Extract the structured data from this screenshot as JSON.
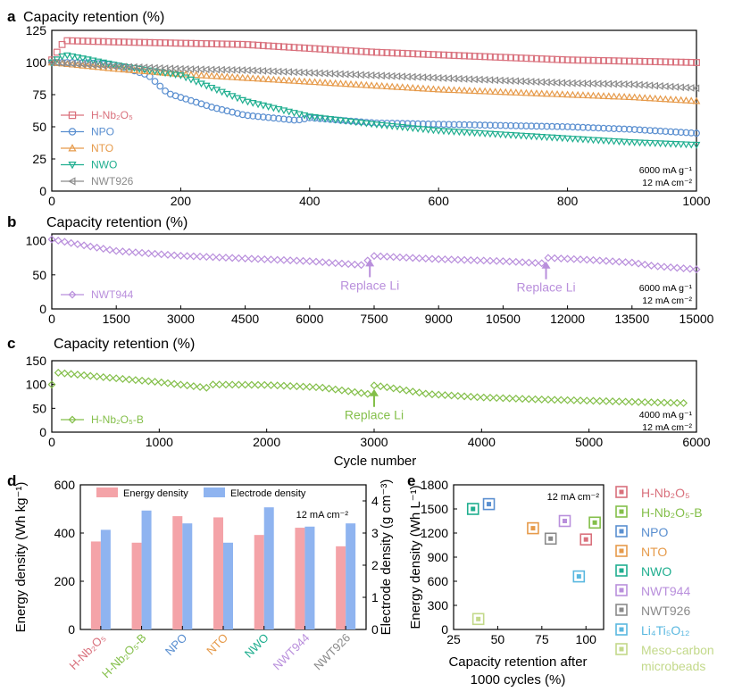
{
  "colors": {
    "H-Nb2O5": "#d9707c",
    "NPO": "#5a8fd0",
    "NTO": "#e69a4a",
    "NWO": "#1fae8f",
    "NWT926": "#8a8a8a",
    "NWT944": "#b98fdc",
    "H-Nb2O5-B": "#84bf4a",
    "Li4Ti5O12": "#5ab8e0",
    "Meso": "#c3d98a",
    "energy_bar": "#f4a3a8",
    "electrode_bar": "#8fb4f0"
  },
  "chart_data": [
    {
      "id": "a",
      "panel_label": "a",
      "type": "scatter",
      "title": "Capacity retention (%)",
      "xlim": [
        0,
        1000
      ],
      "ylim": [
        0,
        125
      ],
      "xticks": [
        "0",
        "200",
        "400",
        "600",
        "800",
        "1000"
      ],
      "yticks": [
        "0",
        "25",
        "50",
        "75",
        "100",
        "125"
      ],
      "annotation": [
        "6000 mA g⁻¹",
        "12 mA cm⁻²"
      ],
      "legend": [
        "H-Nb₂O₅",
        "NPO",
        "NTO",
        "NWO",
        "NWT926"
      ],
      "series": [
        {
          "name": "H-Nb2O5",
          "marker": "square",
          "x": [
            0,
            20,
            100,
            200,
            300,
            400,
            500,
            600,
            700,
            800,
            900,
            1000
          ],
          "y": [
            102,
            117,
            116,
            115,
            114,
            111,
            108,
            106,
            104,
            102,
            101,
            100
          ]
        },
        {
          "name": "NPO",
          "marker": "circle",
          "x": [
            0,
            50,
            100,
            150,
            180,
            250,
            300,
            380,
            400,
            500,
            600,
            700,
            800,
            900,
            1000
          ],
          "y": [
            100,
            100,
            98,
            90,
            76,
            65,
            59,
            55,
            57,
            53,
            52,
            51,
            50,
            48,
            45
          ]
        },
        {
          "name": "NTO",
          "marker": "triangle-up",
          "x": [
            0,
            100,
            200,
            300,
            400,
            500,
            600,
            700,
            800,
            900,
            1000
          ],
          "y": [
            100,
            95,
            91,
            88,
            85,
            82,
            79,
            77,
            75,
            73,
            70
          ]
        },
        {
          "name": "NWO",
          "marker": "triangle-down",
          "x": [
            0,
            20,
            100,
            200,
            300,
            400,
            500,
            600,
            700,
            800,
            900,
            1000
          ],
          "y": [
            100,
            106,
            98,
            90,
            70,
            58,
            52,
            47,
            44,
            41,
            38,
            36
          ]
        },
        {
          "name": "NWT926",
          "marker": "triangle-left",
          "x": [
            0,
            100,
            200,
            300,
            400,
            500,
            600,
            700,
            800,
            900,
            1000
          ],
          "y": [
            100,
            97,
            95,
            94,
            92,
            90,
            88,
            86,
            84,
            83,
            80
          ]
        }
      ]
    },
    {
      "id": "b",
      "panel_label": "b",
      "type": "scatter",
      "title": "Capacity retention  (%)",
      "xlim": [
        0,
        15000
      ],
      "ylim": [
        0,
        110
      ],
      "xticks": [
        "0",
        "1500",
        "3000",
        "4500",
        "6000",
        "7500",
        "9000",
        "10500",
        "12000",
        "13500",
        "15000"
      ],
      "yticks": [
        "0",
        "50",
        "100"
      ],
      "annotation": [
        "6000 mA g⁻¹",
        "12 mA cm⁻²"
      ],
      "legend": [
        "NWT944"
      ],
      "replace_li": [
        {
          "x": 7400,
          "label": "Replace Li"
        },
        {
          "x": 11500,
          "label": "Replace Li"
        }
      ],
      "series": [
        {
          "name": "NWT944",
          "marker": "diamond",
          "x": [
            0,
            500,
            1500,
            3000,
            4500,
            6000,
            7300,
            7400,
            8000,
            9000,
            10500,
            11400,
            11500,
            12500,
            13500,
            14000,
            15000
          ],
          "y": [
            102,
            96,
            85,
            78,
            74,
            70,
            64,
            78,
            76,
            73,
            70,
            67,
            75,
            72,
            68,
            63,
            58
          ]
        }
      ]
    },
    {
      "id": "c",
      "panel_label": "c",
      "type": "scatter",
      "title": "Capacity retention (%)",
      "xlim": [
        0,
        6000
      ],
      "ylim": [
        0,
        150
      ],
      "xticks": [
        "0",
        "1000",
        "2000",
        "3000",
        "4000",
        "5000",
        "6000"
      ],
      "yticks": [
        "0",
        "50",
        "100",
        "150"
      ],
      "xlabel": "Cycle number",
      "annotation": [
        "4000 mA g⁻¹",
        "12 mA cm⁻²"
      ],
      "legend": [
        "H-Nb₂O₅-B"
      ],
      "replace_li": [
        {
          "x": 3000,
          "label": "Replace Li"
        }
      ],
      "series": [
        {
          "name": "H-Nb2O5-B",
          "marker": "diamond",
          "x": [
            0,
            50,
            500,
            1000,
            1450,
            1500,
            2000,
            2500,
            2950,
            3000,
            3100,
            3500,
            4000,
            4500,
            5000,
            5500,
            5900
          ],
          "y": [
            100,
            125,
            115,
            105,
            93,
            100,
            99,
            94,
            80,
            98,
            95,
            80,
            73,
            69,
            66,
            63,
            61
          ]
        }
      ]
    },
    {
      "id": "d",
      "panel_label": "d",
      "type": "bar",
      "categories": [
        "H-Nb₂O₅",
        "H-Nb₂O₅-B",
        "NPO",
        "NTO",
        "NWO",
        "NWT944",
        "NWT926"
      ],
      "category_keys": [
        "H-Nb2O5",
        "H-Nb2O5-B",
        "NPO",
        "NTO",
        "NWO",
        "NWT944",
        "NWT926"
      ],
      "series": [
        {
          "name": "Energy density",
          "axis": "left",
          "values": [
            365,
            360,
            470,
            465,
            392,
            422,
            345
          ]
        },
        {
          "name": "Electrode density",
          "axis": "right",
          "values": [
            3.1,
            3.7,
            3.3,
            2.7,
            3.8,
            3.2,
            3.3
          ]
        }
      ],
      "ylabel": "Energy density (Wh kg⁻¹)",
      "y2label": "Electrode density (g cm⁻³)",
      "ylim": [
        0,
        600
      ],
      "y2lim": [
        0,
        4.5
      ],
      "yticks": [
        "0",
        "200",
        "400",
        "600"
      ],
      "y2ticks": [
        "0",
        "1",
        "2",
        "3",
        "4"
      ],
      "annotation": "12 mA cm⁻²"
    },
    {
      "id": "e",
      "panel_label": "e",
      "type": "scatter",
      "xlabel": "Capacity retention after",
      "xlabel2": "1000 cycles (%)",
      "ylabel": "Energy density (Wh L⁻¹)",
      "xlim": [
        25,
        110
      ],
      "ylim": [
        0,
        1800
      ],
      "xticks": [
        "25",
        "50",
        "75",
        "100"
      ],
      "yticks": [
        "0",
        "300",
        "600",
        "900",
        "1200",
        "1500",
        "1800"
      ],
      "annotation": "12 mA cm⁻²",
      "points": [
        {
          "key": "H-Nb2O5",
          "label": "H-Nb₂O₅",
          "x": 100,
          "y": 1120
        },
        {
          "key": "H-Nb2O5-B",
          "label": "H-Nb₂O₅-B",
          "x": 105,
          "y": 1330
        },
        {
          "key": "NPO",
          "label": "NPO",
          "x": 45,
          "y": 1560
        },
        {
          "key": "NTO",
          "label": "NTO",
          "x": 70,
          "y": 1260
        },
        {
          "key": "NWO",
          "label": "NWO",
          "x": 36,
          "y": 1500
        },
        {
          "key": "NWT944",
          "label": "NWT944",
          "x": 88,
          "y": 1350
        },
        {
          "key": "NWT926",
          "label": "NWT926",
          "x": 80,
          "y": 1130
        },
        {
          "key": "Li4Ti5O12",
          "label": "Li₄Ti₅O₁₂",
          "x": 96,
          "y": 660
        },
        {
          "key": "Meso",
          "label": "Meso-carbon microbeads",
          "x": 39,
          "y": 130
        }
      ],
      "legend": [
        {
          "key": "H-Nb2O5",
          "label": "H-Nb₂O₅"
        },
        {
          "key": "H-Nb2O5-B",
          "label": "H-Nb₂O₅-B"
        },
        {
          "key": "NPO",
          "label": "NPO"
        },
        {
          "key": "NTO",
          "label": "NTO"
        },
        {
          "key": "NWO",
          "label": "NWO"
        },
        {
          "key": "NWT944",
          "label": "NWT944"
        },
        {
          "key": "NWT926",
          "label": "NWT926"
        },
        {
          "key": "Li4Ti5O12",
          "label": "Li₄Ti₅O₁₂"
        },
        {
          "key": "Meso",
          "label": "Meso-carbon",
          "label2": "microbeads"
        }
      ]
    }
  ]
}
